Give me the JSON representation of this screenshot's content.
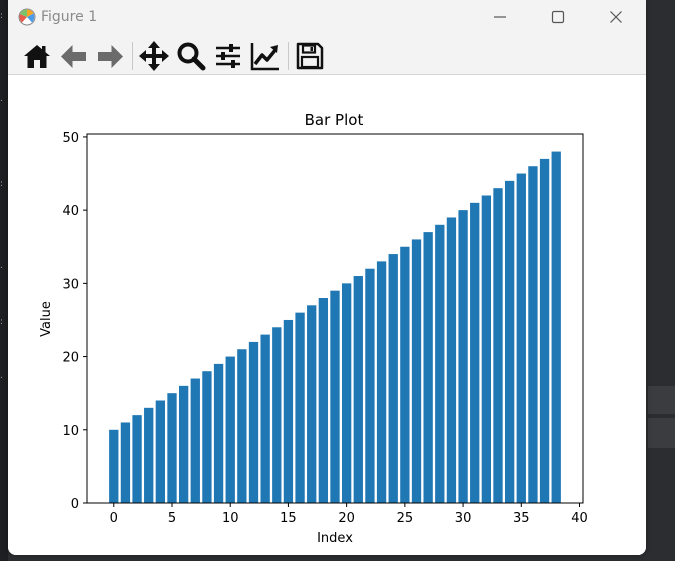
{
  "window": {
    "title": "Figure 1",
    "controls": {
      "minimize": "minimize-icon",
      "maximize": "maximize-icon",
      "close": "close-icon"
    }
  },
  "toolbar": {
    "tools": [
      {
        "name": "home",
        "icon": "home-icon"
      },
      {
        "name": "back",
        "icon": "arrow-left-icon"
      },
      {
        "name": "forward",
        "icon": "arrow-right-icon"
      },
      {
        "name": "pan",
        "icon": "move-icon"
      },
      {
        "name": "zoom",
        "icon": "magnifier-icon"
      },
      {
        "name": "subplots",
        "icon": "sliders-icon"
      },
      {
        "name": "edit-axis",
        "icon": "line-chart-icon"
      },
      {
        "name": "save",
        "icon": "floppy-disk-icon"
      }
    ]
  },
  "chart_data": {
    "type": "bar",
    "title": "Bar Plot",
    "xlabel": "Index",
    "ylabel": "Value",
    "x": [
      0,
      1,
      2,
      3,
      4,
      5,
      6,
      7,
      8,
      9,
      10,
      11,
      12,
      13,
      14,
      15,
      16,
      17,
      18,
      19,
      20,
      21,
      22,
      23,
      24,
      25,
      26,
      27,
      28,
      29,
      30,
      31,
      32,
      33,
      34,
      35,
      36,
      37,
      38
    ],
    "values": [
      10,
      11,
      12,
      13,
      14,
      15,
      16,
      17,
      18,
      19,
      20,
      21,
      22,
      23,
      24,
      25,
      26,
      27,
      28,
      29,
      30,
      31,
      32,
      33,
      34,
      35,
      36,
      37,
      38,
      39,
      40,
      41,
      42,
      43,
      44,
      45,
      46,
      47,
      48
    ],
    "xlim": [
      -2.3,
      40.3
    ],
    "ylim": [
      0,
      50.4
    ],
    "xticks": [
      "0",
      "5",
      "10",
      "15",
      "20",
      "25",
      "30",
      "35",
      "40"
    ],
    "yticks": [
      "0",
      "10",
      "20",
      "30",
      "40",
      "50"
    ],
    "bar_color": "#1f77b4",
    "grid": false
  }
}
